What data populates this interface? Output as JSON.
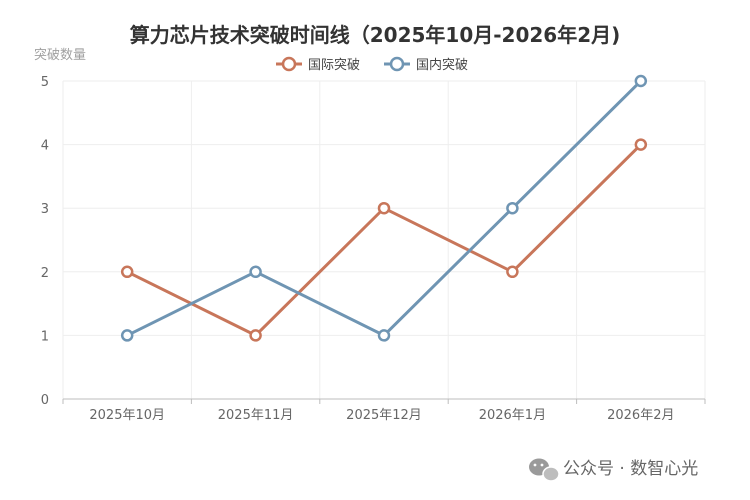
{
  "chart_data": {
    "type": "line",
    "title": "算力芯片技术突破时间线（2025年10月-2026年2月)",
    "ylabel": "突破数量",
    "xlabel": "",
    "categories": [
      "2025年10月",
      "2025年11月",
      "2025年12月",
      "2026年1月",
      "2026年2月"
    ],
    "ylim": [
      0,
      5
    ],
    "yticks": [
      0,
      1,
      2,
      3,
      4,
      5
    ],
    "grid": true,
    "legend_position": "top-center",
    "series": [
      {
        "name": "国际突破",
        "color": "#c8765a",
        "values": [
          2,
          1,
          3,
          2,
          4
        ]
      },
      {
        "name": "国内突破",
        "color": "#6f95b3",
        "values": [
          1,
          2,
          1,
          3,
          5
        ]
      }
    ]
  },
  "watermark": {
    "text": "公众号 · 数智心光",
    "icon": "wechat-icon"
  }
}
